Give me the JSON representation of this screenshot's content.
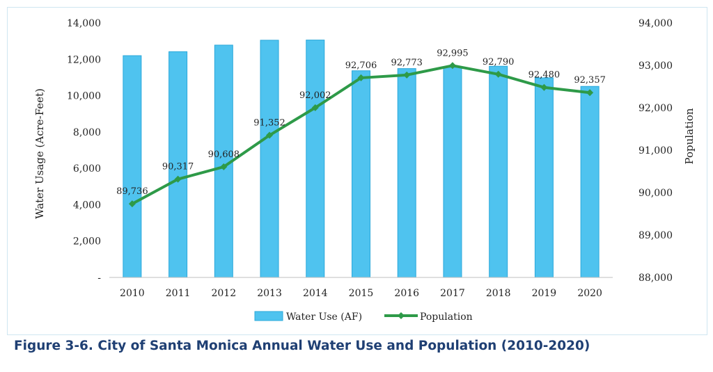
{
  "caption": "Figure 3-6. City of Santa Monica Annual Water Use and Population (2010-2020)",
  "colors": {
    "bar": "#4fc3ef",
    "bar_edge": "#2ba8da",
    "line": "#2e9a48",
    "axis": "#bfbfbf"
  },
  "chart_data": {
    "type": "bar",
    "title": "",
    "categories": [
      "2010",
      "2011",
      "2012",
      "2013",
      "2014",
      "2015",
      "2016",
      "2017",
      "2018",
      "2019",
      "2020"
    ],
    "xlabel": "",
    "ylabel": "Water Usage (Acre-Feet)",
    "y2label": "Population",
    "ylim": [
      0,
      14000
    ],
    "y2lim": [
      88000,
      94000
    ],
    "yticks": [
      "-",
      "2,000",
      "4,000",
      "6,000",
      "8,000",
      "10,000",
      "12,000",
      "14,000"
    ],
    "y2ticks": [
      "88,000",
      "89,000",
      "90,000",
      "91,000",
      "92,000",
      "93,000",
      "94,000"
    ],
    "grid": false,
    "legend_position": "bottom-center",
    "series": [
      {
        "name": "Water Use (AF)",
        "type": "bar",
        "axis": "left",
        "values": [
          12200,
          12420,
          12780,
          13050,
          13060,
          11370,
          11490,
          11560,
          11620,
          10980,
          10510
        ]
      },
      {
        "name": "Population",
        "type": "line",
        "axis": "right",
        "marker": "diamond",
        "values": [
          89736,
          90317,
          90608,
          91352,
          92002,
          92706,
          92773,
          92995,
          92790,
          92480,
          92357
        ],
        "labels": [
          "89,736",
          "90,317",
          "90,608",
          "91,352",
          "92,002",
          "92,706",
          "92,773",
          "92,995",
          "92,790",
          "92,480",
          "92,357"
        ]
      }
    ]
  }
}
